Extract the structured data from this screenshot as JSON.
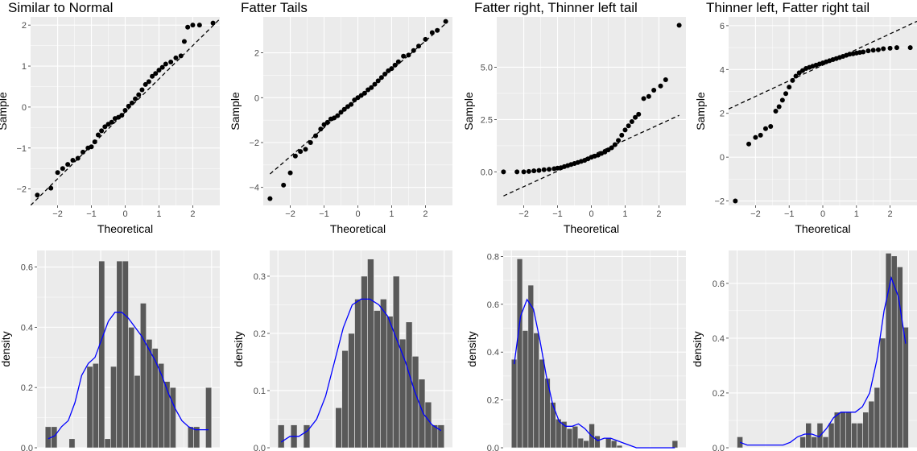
{
  "chart_data": [
    {
      "type": "scatter",
      "title": "Similar to Normal",
      "xlabel": "Theoretical",
      "ylabel": "Sample",
      "xlim": [
        -2.8,
        2.8
      ],
      "ylim": [
        -2.4,
        2.2
      ],
      "xticks": [
        -2,
        -1,
        0,
        1,
        2
      ],
      "xtick_labels": [
        "−2",
        "−1",
        "0",
        "1",
        "2"
      ],
      "yticks": [
        -2,
        -1,
        0,
        1,
        2
      ],
      "ytick_labels": [
        "−2",
        "−1",
        "0",
        "1",
        "2"
      ],
      "reference_line": [
        [
          -2.8,
          -2.4
        ],
        [
          2.8,
          2.15
        ]
      ],
      "points": [
        [
          -2.6,
          -2.15
        ],
        [
          -2.2,
          -1.98
        ],
        [
          -2.0,
          -1.6
        ],
        [
          -1.85,
          -1.5
        ],
        [
          -1.7,
          -1.4
        ],
        [
          -1.55,
          -1.3
        ],
        [
          -1.4,
          -1.25
        ],
        [
          -1.25,
          -1.1
        ],
        [
          -1.1,
          -1.0
        ],
        [
          -1.0,
          -0.97
        ],
        [
          -0.9,
          -0.85
        ],
        [
          -0.8,
          -0.68
        ],
        [
          -0.7,
          -0.58
        ],
        [
          -0.6,
          -0.48
        ],
        [
          -0.5,
          -0.42
        ],
        [
          -0.4,
          -0.37
        ],
        [
          -0.3,
          -0.28
        ],
        [
          -0.2,
          -0.25
        ],
        [
          -0.1,
          -0.2
        ],
        [
          0.0,
          -0.08
        ],
        [
          0.1,
          0.02
        ],
        [
          0.2,
          0.1
        ],
        [
          0.3,
          0.2
        ],
        [
          0.4,
          0.3
        ],
        [
          0.5,
          0.42
        ],
        [
          0.6,
          0.55
        ],
        [
          0.7,
          0.62
        ],
        [
          0.8,
          0.75
        ],
        [
          0.9,
          0.82
        ],
        [
          1.0,
          0.9
        ],
        [
          1.1,
          0.97
        ],
        [
          1.2,
          1.05
        ],
        [
          1.35,
          1.1
        ],
        [
          1.5,
          1.2
        ],
        [
          1.65,
          1.25
        ],
        [
          1.75,
          1.6
        ],
        [
          1.85,
          1.95
        ],
        [
          2.0,
          2.0
        ],
        [
          2.2,
          2.0
        ],
        [
          2.6,
          2.05
        ]
      ]
    },
    {
      "type": "scatter",
      "title": "Fatter Tails",
      "xlabel": "Theoretical",
      "ylabel": "Sample",
      "xlim": [
        -2.8,
        2.8
      ],
      "ylim": [
        -4.8,
        3.6
      ],
      "xticks": [
        -2,
        -1,
        0,
        1,
        2
      ],
      "xtick_labels": [
        "−2",
        "−1",
        "0",
        "1",
        "2"
      ],
      "yticks": [
        -4,
        -2,
        0,
        2
      ],
      "ytick_labels": [
        "−4",
        "−2",
        "0",
        "2"
      ],
      "reference_line": [
        [
          -2.6,
          -3.4
        ],
        [
          2.6,
          3.3
        ]
      ],
      "points": [
        [
          -2.6,
          -4.5
        ],
        [
          -2.2,
          -3.9
        ],
        [
          -2.0,
          -3.35
        ],
        [
          -1.85,
          -2.6
        ],
        [
          -1.7,
          -2.4
        ],
        [
          -1.55,
          -2.3
        ],
        [
          -1.4,
          -2.0
        ],
        [
          -1.25,
          -1.7
        ],
        [
          -1.1,
          -1.4
        ],
        [
          -1.0,
          -1.2
        ],
        [
          -0.9,
          -1.1
        ],
        [
          -0.8,
          -0.95
        ],
        [
          -0.7,
          -0.9
        ],
        [
          -0.6,
          -0.8
        ],
        [
          -0.5,
          -0.65
        ],
        [
          -0.4,
          -0.52
        ],
        [
          -0.3,
          -0.4
        ],
        [
          -0.2,
          -0.3
        ],
        [
          -0.1,
          -0.1
        ],
        [
          0.0,
          0.0
        ],
        [
          0.1,
          0.1
        ],
        [
          0.2,
          0.2
        ],
        [
          0.3,
          0.35
        ],
        [
          0.4,
          0.45
        ],
        [
          0.5,
          0.6
        ],
        [
          0.6,
          0.75
        ],
        [
          0.7,
          0.9
        ],
        [
          0.8,
          1.05
        ],
        [
          0.9,
          1.2
        ],
        [
          1.0,
          1.3
        ],
        [
          1.1,
          1.45
        ],
        [
          1.2,
          1.6
        ],
        [
          1.35,
          1.85
        ],
        [
          1.5,
          1.9
        ],
        [
          1.65,
          2.1
        ],
        [
          1.8,
          2.3
        ],
        [
          2.0,
          2.6
        ],
        [
          2.2,
          2.9
        ],
        [
          2.35,
          3.0
        ],
        [
          2.6,
          3.4
        ]
      ]
    },
    {
      "type": "scatter",
      "title": "Fatter right, Thinner left tail",
      "xlabel": "Theoretical",
      "ylabel": "Sample",
      "xlim": [
        -2.8,
        2.8
      ],
      "ylim": [
        -1.6,
        7.4
      ],
      "xticks": [
        -2,
        -1,
        0,
        1,
        2
      ],
      "xtick_labels": [
        "−2",
        "−1",
        "0",
        "1",
        "2"
      ],
      "yticks": [
        0,
        2.5,
        5
      ],
      "ytick_labels": [
        "0.0",
        "2.5",
        "5.0"
      ],
      "reference_line": [
        [
          -2.6,
          -1.15
        ],
        [
          2.6,
          2.7
        ]
      ],
      "points": [
        [
          -2.6,
          0.0
        ],
        [
          -2.2,
          0.0
        ],
        [
          -2.0,
          0.0
        ],
        [
          -1.85,
          0.02
        ],
        [
          -1.7,
          0.05
        ],
        [
          -1.55,
          0.07
        ],
        [
          -1.4,
          0.1
        ],
        [
          -1.25,
          0.12
        ],
        [
          -1.1,
          0.15
        ],
        [
          -1.0,
          0.18
        ],
        [
          -0.9,
          0.2
        ],
        [
          -0.8,
          0.25
        ],
        [
          -0.7,
          0.3
        ],
        [
          -0.6,
          0.35
        ],
        [
          -0.5,
          0.4
        ],
        [
          -0.4,
          0.45
        ],
        [
          -0.3,
          0.5
        ],
        [
          -0.2,
          0.55
        ],
        [
          -0.1,
          0.62
        ],
        [
          0.0,
          0.7
        ],
        [
          0.1,
          0.75
        ],
        [
          0.2,
          0.8
        ],
        [
          0.3,
          0.88
        ],
        [
          0.4,
          0.95
        ],
        [
          0.5,
          1.05
        ],
        [
          0.6,
          1.15
        ],
        [
          0.7,
          1.3
        ],
        [
          0.8,
          1.5
        ],
        [
          0.9,
          1.75
        ],
        [
          1.0,
          2.0
        ],
        [
          1.1,
          2.2
        ],
        [
          1.2,
          2.4
        ],
        [
          1.3,
          2.6
        ],
        [
          1.4,
          2.75
        ],
        [
          1.55,
          3.5
        ],
        [
          1.7,
          3.6
        ],
        [
          1.85,
          3.9
        ],
        [
          2.05,
          4.1
        ],
        [
          2.2,
          4.4
        ],
        [
          2.6,
          7.0
        ]
      ]
    },
    {
      "type": "scatter",
      "title": "Thinner left, Fatter right tail",
      "xlabel": "Theoretical",
      "ylabel": "Sample",
      "xlim": [
        -2.8,
        2.8
      ],
      "ylim": [
        -2.2,
        6.4
      ],
      "xticks": [
        -2,
        -1,
        0,
        1,
        2
      ],
      "xtick_labels": [
        "−2",
        "−1",
        "0",
        "1",
        "2"
      ],
      "yticks": [
        -2,
        0,
        2,
        4,
        6
      ],
      "ytick_labels": [
        "−2",
        "0",
        "2",
        "4",
        "6"
      ],
      "reference_line": [
        [
          -2.8,
          2.2
        ],
        [
          2.8,
          6.2
        ]
      ],
      "points": [
        [
          -2.6,
          -2.0
        ],
        [
          -2.2,
          0.6
        ],
        [
          -2.0,
          0.9
        ],
        [
          -1.85,
          1.0
        ],
        [
          -1.7,
          1.3
        ],
        [
          -1.55,
          1.4
        ],
        [
          -1.4,
          2.1
        ],
        [
          -1.3,
          2.3
        ],
        [
          -1.2,
          2.6
        ],
        [
          -1.1,
          2.9
        ],
        [
          -1.0,
          3.2
        ],
        [
          -0.9,
          3.5
        ],
        [
          -0.8,
          3.7
        ],
        [
          -0.7,
          3.85
        ],
        [
          -0.6,
          3.95
        ],
        [
          -0.5,
          4.05
        ],
        [
          -0.4,
          4.1
        ],
        [
          -0.3,
          4.15
        ],
        [
          -0.2,
          4.2
        ],
        [
          -0.1,
          4.25
        ],
        [
          0.0,
          4.3
        ],
        [
          0.1,
          4.35
        ],
        [
          0.2,
          4.4
        ],
        [
          0.3,
          4.45
        ],
        [
          0.4,
          4.5
        ],
        [
          0.5,
          4.55
        ],
        [
          0.6,
          4.6
        ],
        [
          0.7,
          4.65
        ],
        [
          0.8,
          4.7
        ],
        [
          0.9,
          4.72
        ],
        [
          1.0,
          4.75
        ],
        [
          1.1,
          4.78
        ],
        [
          1.2,
          4.8
        ],
        [
          1.35,
          4.85
        ],
        [
          1.5,
          4.88
        ],
        [
          1.65,
          4.9
        ],
        [
          1.8,
          4.95
        ],
        [
          2.0,
          4.97
        ],
        [
          2.2,
          5.0
        ],
        [
          2.6,
          5.0
        ]
      ]
    },
    {
      "type": "bar",
      "xlabel": "",
      "ylabel": "density",
      "ylim": [
        0,
        0.655
      ],
      "yticks": [
        0,
        0.2,
        0.4,
        0.6
      ],
      "ytick_labels": [
        "0.0",
        "0.2",
        "0.4",
        "0.6"
      ],
      "values": [
        0.07,
        0.07,
        0,
        0,
        0.03,
        0,
        0,
        0.27,
        0.28,
        0.62,
        0.03,
        0.27,
        0.62,
        0.62,
        0.4,
        0.24,
        0.48,
        0.36,
        0.33,
        0.28,
        0.22,
        0.2,
        0,
        0,
        0.07,
        0.07,
        0,
        0.2
      ],
      "density_curve": [
        0.03,
        0.04,
        0.07,
        0.09,
        0.15,
        0.24,
        0.28,
        0.3,
        0.36,
        0.42,
        0.45,
        0.45,
        0.43,
        0.4,
        0.37,
        0.33,
        0.29,
        0.24,
        0.18,
        0.13,
        0.09,
        0.07,
        0.06,
        0.06,
        0.06
      ]
    },
    {
      "type": "bar",
      "xlabel": "",
      "ylabel": "density",
      "ylim": [
        0,
        0.345
      ],
      "yticks": [
        0,
        0.1,
        0.2,
        0.3
      ],
      "ytick_labels": [
        "0.0",
        "0.1",
        "0.2",
        "0.3"
      ],
      "values": [
        0.04,
        0,
        0.04,
        0,
        0.04,
        0,
        0,
        0,
        0,
        0.07,
        0.17,
        0.2,
        0.26,
        0.3,
        0.33,
        0.24,
        0.26,
        0.23,
        0.3,
        0.19,
        0.22,
        0.16,
        0.12,
        0.08,
        0.04,
        0.04
      ],
      "density_curve": [
        0.01,
        0.02,
        0.02,
        0.03,
        0.05,
        0.09,
        0.15,
        0.21,
        0.25,
        0.26,
        0.26,
        0.25,
        0.23,
        0.19,
        0.15,
        0.1,
        0.06,
        0.04,
        0.03
      ]
    },
    {
      "type": "bar",
      "xlabel": "",
      "ylabel": "density",
      "ylim": [
        0,
        0.825
      ],
      "yticks": [
        0,
        0.2,
        0.4,
        0.6,
        0.8
      ],
      "ytick_labels": [
        "0.0",
        "0.2",
        "0.4",
        "0.6",
        "0.8"
      ],
      "values": [
        0.37,
        0.79,
        0.49,
        0.68,
        0.48,
        0.37,
        0.29,
        0.19,
        0.12,
        0.11,
        0.08,
        0.09,
        0.04,
        0.03,
        0.1,
        0.05,
        0,
        0.04,
        0.03,
        0.01,
        0,
        0,
        0,
        0,
        0,
        0,
        0,
        0,
        0,
        0.03
      ],
      "density_curve": [
        0.35,
        0.55,
        0.62,
        0.58,
        0.45,
        0.3,
        0.18,
        0.11,
        0.09,
        0.09,
        0.1,
        0.08,
        0.05,
        0.03,
        0.04,
        0.04,
        0.03,
        0.02,
        0.01,
        0.0,
        0.0,
        0.0,
        0.0,
        0.0,
        0.0,
        0.0
      ]
    },
    {
      "type": "bar",
      "xlabel": "",
      "ylabel": "density",
      "ylim": [
        0,
        0.72
      ],
      "yticks": [
        0,
        0.2,
        0.4,
        0.6
      ],
      "ytick_labels": [
        "0.0",
        "0.2",
        "0.4",
        "0.6"
      ],
      "values": [
        0.04,
        0,
        0,
        0,
        0,
        0,
        0,
        0,
        0,
        0,
        0,
        0.04,
        0.09,
        0.04,
        0.09,
        0.04,
        0.09,
        0.13,
        0.13,
        0.13,
        0.09,
        0.09,
        0.13,
        0.17,
        0.22,
        0.4,
        0.71,
        0.7,
        0.66,
        0.44
      ],
      "density_curve": [
        0.02,
        0.01,
        0.01,
        0.01,
        0.01,
        0.01,
        0.01,
        0.02,
        0.04,
        0.05,
        0.05,
        0.04,
        0.07,
        0.11,
        0.13,
        0.13,
        0.13,
        0.15,
        0.2,
        0.32,
        0.5,
        0.62,
        0.55,
        0.38
      ]
    }
  ]
}
